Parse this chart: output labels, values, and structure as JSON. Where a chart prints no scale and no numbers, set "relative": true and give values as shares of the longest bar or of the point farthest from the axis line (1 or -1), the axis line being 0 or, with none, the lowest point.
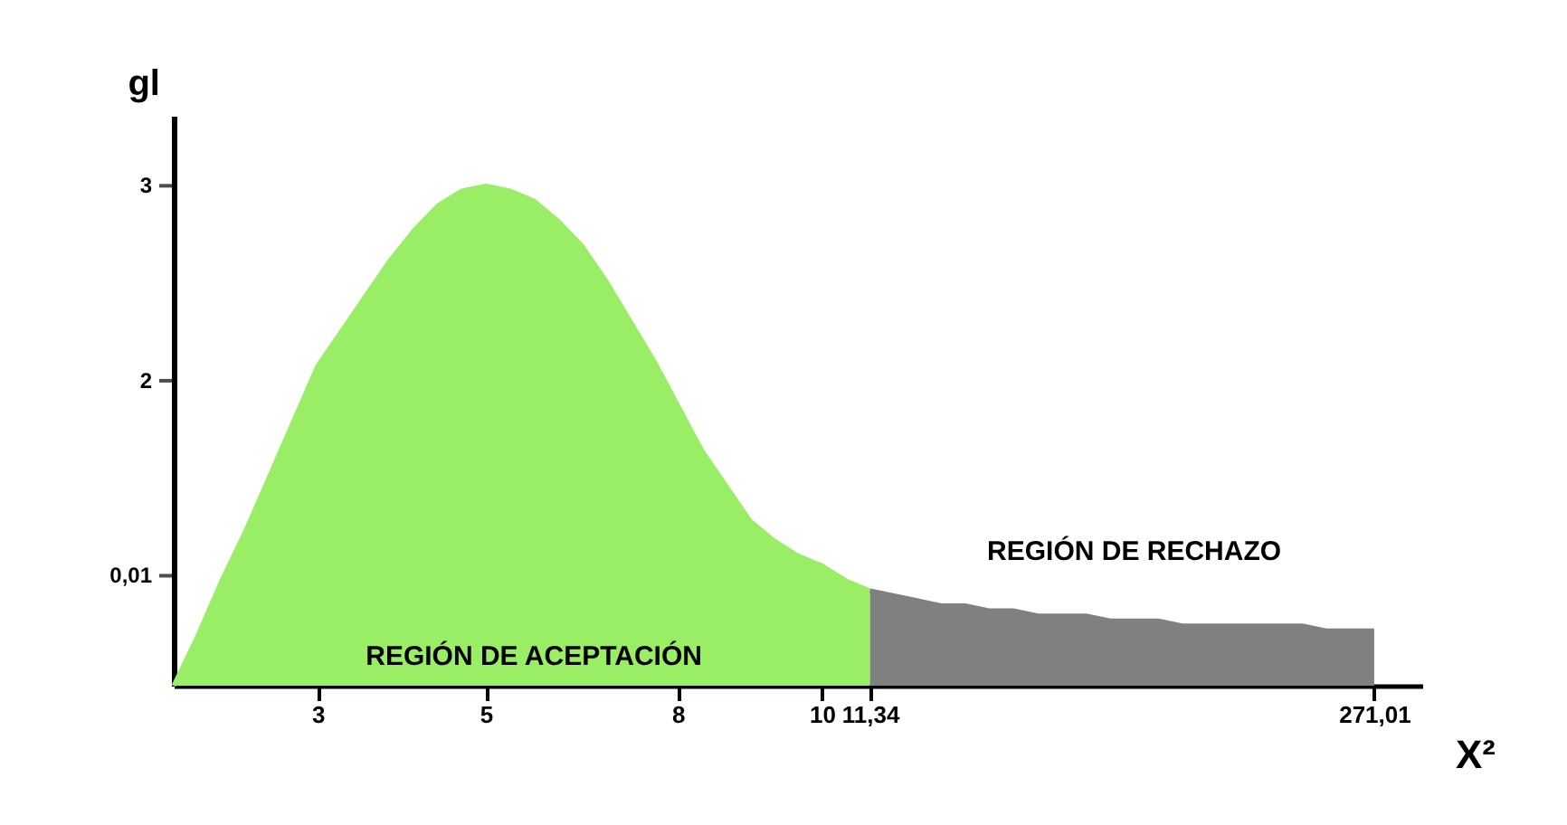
{
  "chart_data": {
    "type": "area",
    "xlabel": "X²",
    "ylabel": "gl",
    "relative": true,
    "categories": [
      null,
      null,
      null,
      null,
      null,
      null,
      "3",
      null,
      null,
      null,
      null,
      null,
      null,
      "5",
      null,
      null,
      null,
      null,
      null,
      null,
      null,
      "8",
      null,
      null,
      null,
      null,
      null,
      "10",
      null,
      "11,34",
      null,
      null,
      null,
      null,
      null,
      null,
      null,
      null,
      null,
      null,
      null,
      null,
      null,
      null,
      null,
      null,
      null,
      null,
      null,
      null,
      "271,01",
      null,
      null
    ],
    "series": [
      {
        "color": "#99ee66",
        "values": [
          0,
          0.1,
          0.21,
          0.31,
          0.42,
          0.53,
          0.64,
          0.71,
          0.78,
          0.85,
          0.91,
          0.96,
          0.99,
          1,
          0.99,
          0.97,
          0.93,
          0.88,
          0.81,
          0.73,
          0.65,
          0.56,
          0.47,
          0.4,
          0.33,
          0.29,
          0.26,
          0.24,
          0.21,
          0.19,
          null,
          null,
          null,
          null,
          null,
          null,
          null,
          null,
          null,
          null,
          null,
          null,
          null,
          null,
          null,
          null,
          null,
          null,
          null,
          null,
          null,
          null,
          null
        ]
      },
      {
        "color": "#808080",
        "values": [
          null,
          null,
          null,
          null,
          null,
          null,
          null,
          null,
          null,
          null,
          null,
          null,
          null,
          null,
          null,
          null,
          null,
          null,
          null,
          null,
          null,
          null,
          null,
          null,
          null,
          null,
          null,
          null,
          null,
          0.19,
          0.18,
          0.17,
          0.16,
          0.16,
          0.15,
          0.15,
          0.14,
          0.14,
          0.14,
          0.13,
          0.13,
          0.13,
          0.12,
          0.12,
          0.12,
          0.12,
          0.12,
          0.12,
          0.11,
          0.11,
          0.11,
          null,
          null
        ]
      }
    ],
    "annotations": [
      "REGIÓN DE ACEPTACIÓN",
      "REGIÓN DE RECHAZO",
      "3",
      "2",
      "0,01"
    ]
  }
}
